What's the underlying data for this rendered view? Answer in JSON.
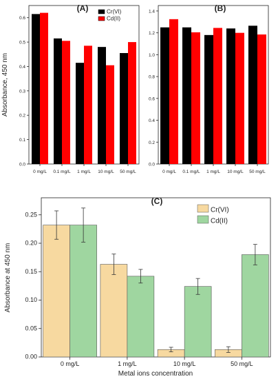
{
  "chart_data": [
    {
      "type": "bar",
      "panel_label": "(A)",
      "ylabel": "Absorbance, 450 nm",
      "ylim": [
        0,
        0.65
      ],
      "yticks": [
        "0.0",
        "0.1",
        "0.2",
        "0.3",
        "0.4",
        "0.5",
        "0.6"
      ],
      "categories": [
        "0 mg/L",
        "0.1 mg/L",
        "1 mg/L",
        "10 mg/L",
        "50 mg/L"
      ],
      "series": [
        {
          "name": "Cr(VI)",
          "color": "#000000",
          "values": [
            0.615,
            0.515,
            0.415,
            0.48,
            0.455
          ]
        },
        {
          "name": "Cd(II)",
          "color": "#ff0000",
          "values": [
            0.62,
            0.505,
            0.485,
            0.405,
            0.5
          ]
        }
      ],
      "legend": "top-right",
      "grid": false
    },
    {
      "type": "bar",
      "panel_label": "(B)",
      "ylim": [
        0,
        1.45
      ],
      "yticks": [
        "0.0",
        "0.2",
        "0.4",
        "0.6",
        "0.8",
        "1.0",
        "1.2",
        "1.4"
      ],
      "categories": [
        "0 mg/L",
        "0.1 mg/L",
        "1 mg/L",
        "10 mg/L",
        "50 mg/L"
      ],
      "series": [
        {
          "color": "#000000",
          "values": [
            1.25,
            1.25,
            1.18,
            1.24,
            1.265
          ]
        },
        {
          "color": "#ff0000",
          "values": [
            1.325,
            1.205,
            1.245,
            1.2,
            1.185
          ]
        }
      ],
      "grid": false
    },
    {
      "type": "bar",
      "panel_label": "(C)",
      "xlabel": "Metal ions concentration",
      "ylabel": "Absorbance at 450 nm",
      "ylim": [
        0,
        0.28
      ],
      "yticks": [
        "0.00",
        "0.05",
        "0.10",
        "0.15",
        "0.20",
        "0.25"
      ],
      "categories": [
        "0 mg/L",
        "1 mg/L",
        "10 mg/L",
        "50 mg/L"
      ],
      "series": [
        {
          "name": "Cr(VI)",
          "color": "#f7d9a0",
          "values": [
            0.232,
            0.163,
            0.013,
            0.013
          ],
          "errors": [
            0.025,
            0.018,
            0.004,
            0.005
          ]
        },
        {
          "name": "Cd(II)",
          "color": "#9fd6a0",
          "values": [
            0.232,
            0.142,
            0.124,
            0.18
          ],
          "errors": [
            0.03,
            0.012,
            0.014,
            0.018
          ]
        }
      ],
      "legend": "top-right",
      "grid": false
    }
  ]
}
